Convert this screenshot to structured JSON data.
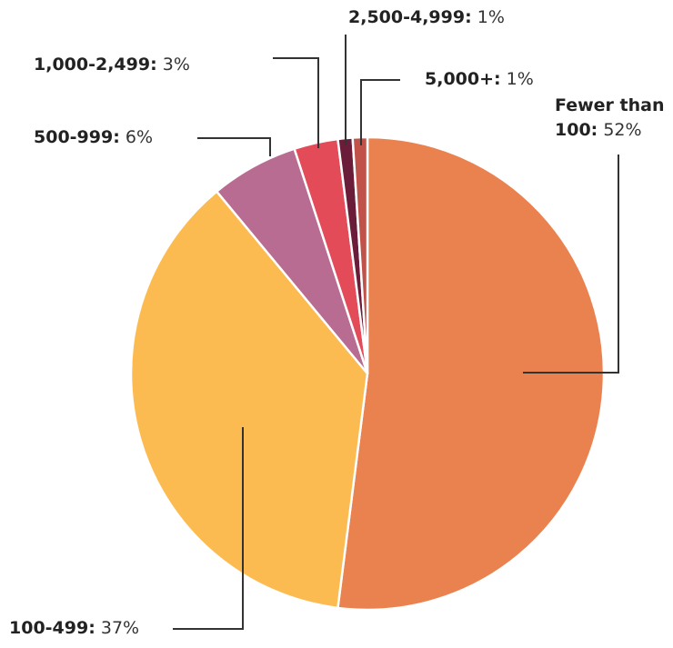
{
  "chart_data": {
    "type": "pie",
    "categories": [
      "Fewer than 100:",
      "100-499:",
      "500-999:",
      "1,000-2,499:",
      "2,500-4,999:",
      "5,000+:"
    ],
    "values": [
      52,
      37,
      6,
      3,
      1,
      1
    ],
    "value_labels": [
      "52%",
      "37%",
      "6%",
      "3%",
      "1%",
      "1%"
    ],
    "colors": [
      "#ea8250",
      "#fcbb50",
      "#b86c91",
      "#e34b59",
      "#6a1c38",
      "#c0524a"
    ]
  }
}
